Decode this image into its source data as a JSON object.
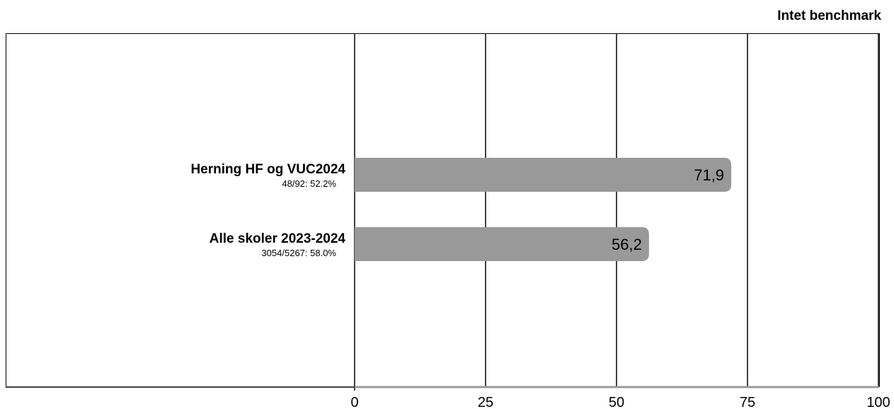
{
  "header": {
    "benchmark_label": "Intet benchmark"
  },
  "chart_data": {
    "type": "bar",
    "orientation": "horizontal",
    "title": "",
    "xlabel": "",
    "ylabel": "",
    "xlim": [
      0,
      100
    ],
    "xticks": [
      "0",
      "25",
      "50",
      "75",
      "100"
    ],
    "bar_color": "#999999",
    "grid": true,
    "categories": [
      {
        "name": "Herning HF og VUC2024",
        "subtitle": "48/92: 52.2%",
        "value": 71.9,
        "value_label": "71,9"
      },
      {
        "name": "Alle skoler 2023-2024",
        "subtitle": "3054/5267: 58.0%",
        "value": 56.2,
        "value_label": "56,2"
      }
    ]
  }
}
